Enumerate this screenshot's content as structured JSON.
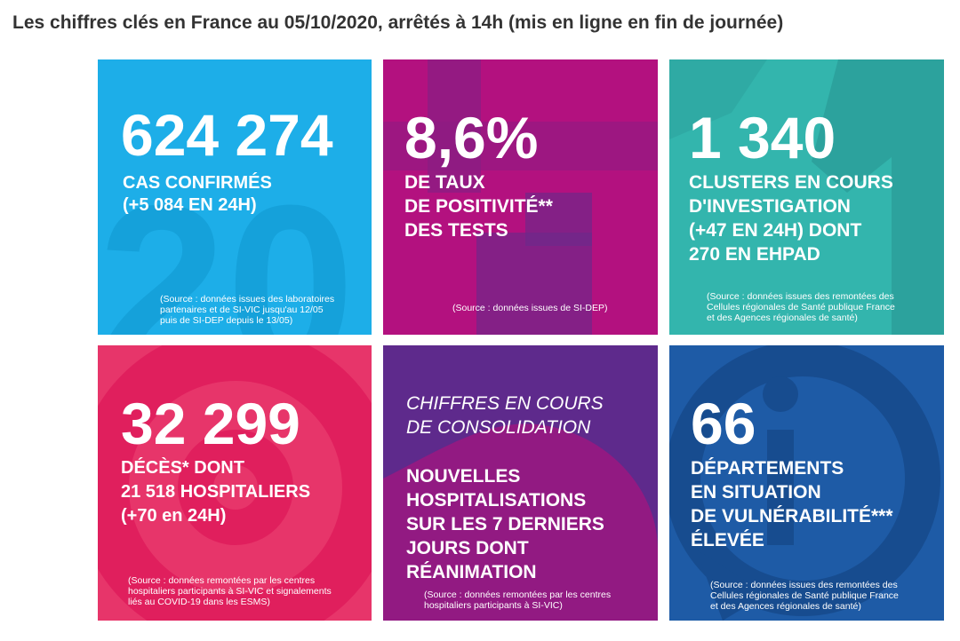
{
  "page": {
    "title": "Les chiffres clés en France au 05/10/2020, arrêtés à 14h (mis en ligne en fin de journée)"
  },
  "colors": {
    "cases_bg": "#1daee8",
    "positivity_bg": "#b3117f",
    "clusters_bg": "#33b5ad",
    "deaths_bg": "#e7356a",
    "hosp_bg": "#5e2a8c",
    "depts_bg": "#1e5ba6",
    "text": "#ffffff",
    "title": "#333333"
  },
  "tiles": {
    "cases": {
      "value": "624 274",
      "label": "CAS CONFIRMÉS\n(+5 084 EN 24H)",
      "source": "(Source : données issues des laboratoires\npartenaires et de SI-VIC jusqu'au 12/05\npuis de SI-DEP depuis le 13/05)",
      "decor_icon": "number-20-icon"
    },
    "positivity": {
      "value": "8,6%",
      "label": "DE TAUX\nDE POSITIVITÉ**\nDES TESTS",
      "source": "(Source : données issues de SI-DEP)",
      "decor_icon": "plus-icon"
    },
    "clusters": {
      "value": "1 340",
      "label": "CLUSTERS EN COURS\nD'INVESTIGATION\n(+47 EN 24H) DONT\n270 EN EHPAD",
      "source": "(Source : données issues des remontées des\nCellules régionales de Santé publique France\net des Agences régionales de santé)",
      "decor_icon": "number-1-icon"
    },
    "deaths": {
      "value": "32 299",
      "label": "DÉCÈS* DONT\n21 518 HOSPITALIERS\n(+70 en 24H)",
      "source": "(Source : données remontées par les centres\nhospitaliers participants à SI-VIC et signalements\nliés au COVID-19 dans les ESMS)",
      "decor_icon": "ring-icon"
    },
    "hospitalisations": {
      "italic_label": "CHIFFRES EN COURS\nDE CONSOLIDATION",
      "label": "NOUVELLES\nHOSPITALISATIONS\nSUR LES 7 DERNIERS\nJOURS DONT\nRÉANIMATION",
      "source": "(Source : données remontées par les centres\nhospitaliers participants à SI-VIC)",
      "decor_icon": "wave-blob-icon"
    },
    "departments": {
      "value": "66",
      "label": "DÉPARTEMENTS\nEN SITUATION\nDE VULNÉRABILITÉ***\nÉLEVÉE",
      "source": "(Source : données issues des remontées des\nCellules régionales de Santé publique France\net des Agences régionales de santé)",
      "decor_icon": "info-bubble-icon"
    }
  }
}
